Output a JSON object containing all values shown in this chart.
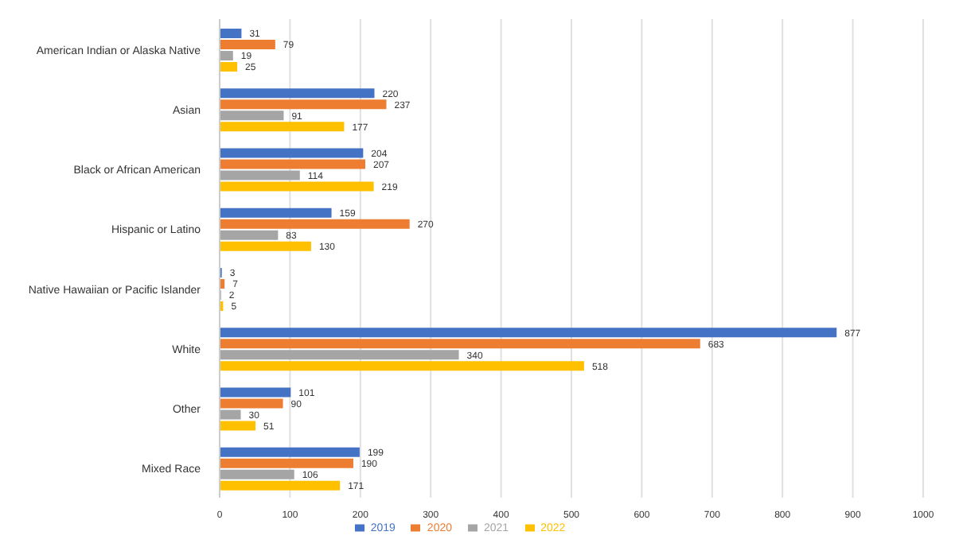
{
  "chart_data": {
    "type": "bar",
    "orientation": "horizontal",
    "categories": [
      "American Indian or Alaska Native",
      "Asian",
      "Black or African American",
      "Hispanic or Latino",
      "Native Hawaiian or Pacific Islander",
      "White",
      "Other",
      "Mixed Race"
    ],
    "series": [
      {
        "name": "2019",
        "color": "#4472c4",
        "values": [
          31,
          220,
          204,
          159,
          3,
          877,
          101,
          199
        ]
      },
      {
        "name": "2020",
        "color": "#ed7d31",
        "values": [
          79,
          237,
          207,
          270,
          7,
          683,
          90,
          190
        ]
      },
      {
        "name": "2021",
        "color": "#a5a5a5",
        "values": [
          19,
          91,
          114,
          83,
          2,
          340,
          30,
          106
        ]
      },
      {
        "name": "2022",
        "color": "#ffc000",
        "values": [
          25,
          177,
          219,
          130,
          5,
          518,
          51,
          171
        ]
      }
    ],
    "xlim": [
      0,
      1000
    ],
    "xticks": [
      0,
      100,
      200,
      300,
      400,
      500,
      600,
      700,
      800,
      900,
      1000
    ],
    "grid": "x",
    "legend": "bottom",
    "data_labels": true
  }
}
